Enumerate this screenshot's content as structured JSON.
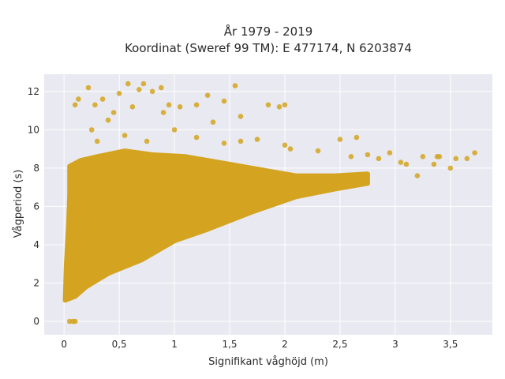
{
  "chart_data": {
    "type": "scatter",
    "title_lines": [
      "År 1979 - 2019",
      "Koordinat (Sweref 99 TM): E 477174, N 6203874"
    ],
    "xlabel": "Signifikant våghöjd (m)",
    "ylabel": "Vågperiod (s)",
    "xlim": [
      -0.18,
      3.88
    ],
    "ylim": [
      -0.7,
      12.9
    ],
    "x_ticks": [
      0,
      0.5,
      1,
      1.5,
      2,
      2.5,
      3,
      3.5
    ],
    "x_tick_labels": [
      "0",
      "0,5",
      "1",
      "1,5",
      "2",
      "2,5",
      "3",
      "3,5"
    ],
    "y_ticks": [
      0,
      2,
      4,
      6,
      8,
      10,
      12
    ],
    "y_tick_labels": [
      "0",
      "2",
      "4",
      "6",
      "8",
      "10",
      "12"
    ],
    "grid": true,
    "legend": "none",
    "colors": {
      "marker": "#d4a420",
      "plot_bg": "#e9e9f1",
      "grid": "#ffffff",
      "text": "#2a2a2a"
    },
    "dense_region_polygon": [
      [
        0.01,
        1.1
      ],
      [
        0.02,
        3.0
      ],
      [
        0.04,
        5.0
      ],
      [
        0.05,
        6.6
      ],
      [
        0.05,
        8.1
      ],
      [
        0.15,
        8.4
      ],
      [
        0.3,
        8.6
      ],
      [
        0.55,
        8.9
      ],
      [
        0.8,
        8.7
      ],
      [
        1.1,
        8.6
      ],
      [
        1.5,
        8.2
      ],
      [
        1.8,
        7.9
      ],
      [
        2.1,
        7.6
      ],
      [
        2.45,
        7.6
      ],
      [
        2.75,
        7.7
      ],
      [
        2.75,
        7.2
      ],
      [
        2.45,
        6.9
      ],
      [
        2.1,
        6.5
      ],
      [
        1.7,
        5.7
      ],
      [
        1.3,
        4.8
      ],
      [
        1.0,
        4.2
      ],
      [
        0.7,
        3.2
      ],
      [
        0.4,
        2.5
      ],
      [
        0.2,
        1.8
      ],
      [
        0.1,
        1.3
      ]
    ],
    "outlier_points": [
      [
        0.05,
        0.0
      ],
      [
        0.08,
        0.0
      ],
      [
        0.1,
        0.0
      ],
      [
        0.1,
        11.3
      ],
      [
        0.13,
        11.6
      ],
      [
        0.22,
        12.2
      ],
      [
        0.28,
        11.3
      ],
      [
        0.35,
        11.6
      ],
      [
        0.45,
        10.9
      ],
      [
        0.5,
        11.9
      ],
      [
        0.58,
        12.4
      ],
      [
        0.62,
        11.2
      ],
      [
        0.68,
        12.1
      ],
      [
        0.72,
        12.4
      ],
      [
        0.8,
        12.0
      ],
      [
        0.88,
        12.2
      ],
      [
        0.95,
        11.3
      ],
      [
        1.05,
        11.2
      ],
      [
        1.2,
        11.3
      ],
      [
        1.3,
        11.8
      ],
      [
        1.45,
        11.5
      ],
      [
        1.55,
        12.3
      ],
      [
        1.85,
        11.3
      ],
      [
        1.95,
        11.2
      ],
      [
        2.0,
        11.3
      ],
      [
        1.6,
        10.7
      ],
      [
        1.35,
        10.4
      ],
      [
        0.9,
        10.9
      ],
      [
        0.4,
        10.5
      ],
      [
        0.25,
        10.0
      ],
      [
        0.3,
        9.4
      ],
      [
        0.55,
        9.7
      ],
      [
        0.75,
        9.4
      ],
      [
        1.0,
        10.0
      ],
      [
        1.2,
        9.6
      ],
      [
        1.45,
        9.3
      ],
      [
        1.6,
        9.4
      ],
      [
        1.75,
        9.5
      ],
      [
        2.0,
        9.2
      ],
      [
        2.05,
        9.0
      ],
      [
        2.3,
        8.9
      ],
      [
        2.5,
        9.5
      ],
      [
        2.65,
        9.6
      ],
      [
        2.6,
        8.6
      ],
      [
        2.75,
        8.7
      ],
      [
        2.85,
        8.5
      ],
      [
        2.95,
        8.8
      ],
      [
        3.05,
        8.3
      ],
      [
        3.1,
        8.2
      ],
      [
        3.2,
        7.6
      ],
      [
        3.25,
        8.6
      ],
      [
        3.35,
        8.2
      ],
      [
        3.38,
        8.6
      ],
      [
        3.55,
        8.5
      ],
      [
        3.65,
        8.5
      ],
      [
        3.72,
        8.8
      ],
      [
        3.5,
        8.0
      ],
      [
        3.4,
        8.6
      ]
    ]
  }
}
